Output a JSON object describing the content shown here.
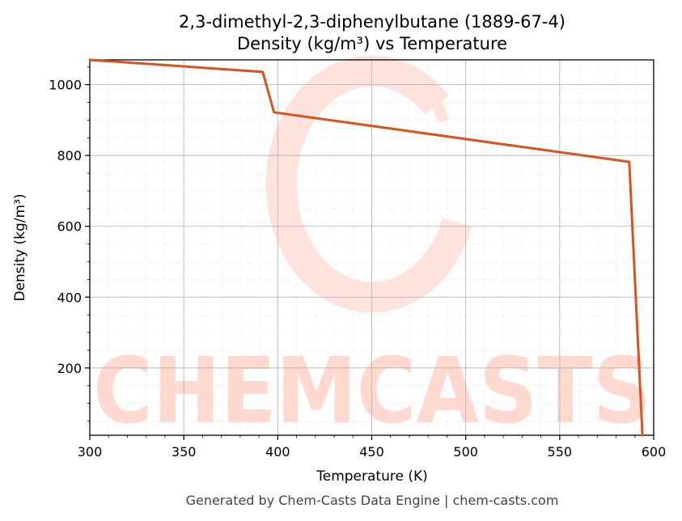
{
  "chart_data": {
    "type": "line",
    "title": "2,3-dimethyl-2,3-diphenylbutane (1889-67-4)",
    "subtitle": "Density (kg/m³) vs Temperature",
    "xlabel": "Temperature (K)",
    "ylabel": "Density (kg/m³)",
    "xlim": [
      300,
      600
    ],
    "ylim": [
      10,
      1070
    ],
    "xticks": [
      300,
      350,
      400,
      450,
      500,
      550,
      600
    ],
    "yticks": [
      200,
      400,
      600,
      800,
      1000
    ],
    "grid": true,
    "series": [
      {
        "color": "#d9531e",
        "x": [
          300,
          392,
          398,
          587,
          594
        ],
        "y": [
          1070,
          1036,
          922,
          782,
          10
        ]
      }
    ]
  },
  "watermark": {
    "text": "CHEMCASTS",
    "color": "#ffd9d0"
  },
  "footer": "Generated by Chem-Casts Data Engine | chem-casts.com"
}
